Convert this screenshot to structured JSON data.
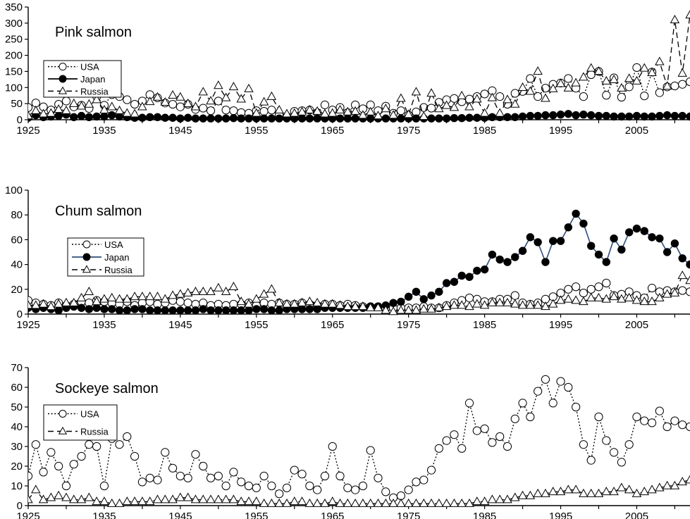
{
  "colors": {
    "japan_line_chum": "#2e4d7a",
    "marker_fill_japan": "#000000",
    "axis": "#000000",
    "background": "#ffffff"
  },
  "chart_data": [
    {
      "type": "line",
      "title": "Pink salmon",
      "xlim": [
        1925,
        2012
      ],
      "ylim": [
        0,
        350
      ],
      "yticks": [
        0,
        50,
        100,
        150,
        200,
        250,
        300,
        350
      ],
      "xticks": [
        1925,
        1935,
        1945,
        1955,
        1965,
        1975,
        1985,
        1995,
        2005
      ],
      "legend": {
        "entries": [
          "USA",
          "Japan",
          "Russia"
        ],
        "position": "upper-left"
      },
      "x": [
        1925,
        1926,
        1927,
        1928,
        1929,
        1930,
        1931,
        1932,
        1933,
        1934,
        1935,
        1936,
        1937,
        1938,
        1939,
        1940,
        1941,
        1942,
        1943,
        1944,
        1945,
        1946,
        1947,
        1948,
        1949,
        1950,
        1951,
        1952,
        1953,
        1954,
        1955,
        1956,
        1957,
        1958,
        1959,
        1960,
        1961,
        1962,
        1963,
        1964,
        1965,
        1966,
        1967,
        1968,
        1969,
        1970,
        1971,
        1972,
        1973,
        1974,
        1975,
        1976,
        1977,
        1978,
        1979,
        1980,
        1981,
        1982,
        1983,
        1984,
        1985,
        1986,
        1987,
        1988,
        1989,
        1990,
        1991,
        1992,
        1993,
        1994,
        1995,
        1996,
        1997,
        1998,
        1999,
        2000,
        2001,
        2002,
        2003,
        2004,
        2005,
        2006,
        2007,
        2008,
        2009,
        2010,
        2011,
        2012
      ],
      "series": [
        {
          "name": "USA",
          "style": "dotted-open-circle",
          "values": [
            38,
            52,
            40,
            30,
            48,
            58,
            40,
            45,
            35,
            72,
            45,
            78,
            72,
            62,
            48,
            58,
            78,
            68,
            52,
            48,
            40,
            48,
            32,
            36,
            28,
            58,
            30,
            28,
            22,
            20,
            28,
            26,
            30,
            14,
            10,
            26,
            28,
            30,
            22,
            46,
            30,
            38,
            22,
            46,
            34,
            46,
            28,
            42,
            20,
            28,
            14,
            24,
            38,
            36,
            54,
            62,
            66,
            56,
            64,
            72,
            80,
            90,
            72,
            48,
            82,
            88,
            128,
            72,
            98,
            110,
            114,
            128,
            98,
            72,
            140,
            150,
            76,
            130,
            70,
            102,
            162,
            74,
            148,
            84,
            102,
            105,
            110,
            118
          ]
        },
        {
          "name": "Japan",
          "style": "solid-filled-circle",
          "values": [
            6,
            14,
            8,
            10,
            12,
            16,
            8,
            12,
            8,
            10,
            10,
            14,
            10,
            8,
            6,
            6,
            8,
            8,
            6,
            6,
            4,
            6,
            4,
            4,
            4,
            4,
            4,
            5,
            4,
            4,
            4,
            4,
            4,
            4,
            4,
            4,
            4,
            4,
            4,
            4,
            4,
            4,
            4,
            4,
            4,
            4,
            4,
            4,
            4,
            4,
            4,
            4,
            4,
            4,
            4,
            4,
            5,
            5,
            6,
            6,
            6,
            8,
            8,
            8,
            8,
            10,
            12,
            12,
            14,
            14,
            16,
            18,
            14,
            16,
            14,
            12,
            12,
            10,
            10,
            10,
            12,
            10,
            10,
            12,
            14,
            12,
            12,
            10
          ]
        },
        {
          "name": "Russia",
          "style": "dashed-open-triangle",
          "values": [
            12,
            28,
            18,
            20,
            32,
            28,
            50,
            42,
            48,
            62,
            30,
            40,
            28,
            20,
            18,
            40,
            56,
            70,
            54,
            76,
            70,
            50,
            40,
            86,
            58,
            106,
            68,
            102,
            64,
            96,
            20,
            55,
            72,
            30,
            18,
            20,
            24,
            30,
            26,
            18,
            20,
            30,
            24,
            26,
            14,
            24,
            12,
            34,
            14,
            66,
            16,
            86,
            10,
            82,
            34,
            44,
            38,
            74,
            40,
            64,
            20,
            68,
            20,
            62,
            48,
            100,
            88,
            150,
            66,
            96,
            112,
            98,
            114,
            132,
            160,
            150,
            120,
            124,
            98,
            128,
            120,
            160,
            146,
            180,
            104,
            310,
            144,
            325
          ]
        }
      ]
    },
    {
      "type": "line",
      "title": "Chum salmon",
      "xlim": [
        1925,
        2012
      ],
      "ylim": [
        0,
        100
      ],
      "yticks": [
        0,
        20,
        40,
        60,
        80,
        100
      ],
      "xticks": [
        1925,
        1935,
        1945,
        1955,
        1965,
        1975,
        1985,
        1995,
        2005
      ],
      "legend": {
        "entries": [
          "USA",
          "Japan",
          "Russia"
        ],
        "position": "upper-left"
      },
      "x": [
        1925,
        1926,
        1927,
        1928,
        1929,
        1930,
        1931,
        1932,
        1933,
        1934,
        1935,
        1936,
        1937,
        1938,
        1939,
        1940,
        1941,
        1942,
        1943,
        1944,
        1945,
        1946,
        1947,
        1948,
        1949,
        1950,
        1951,
        1952,
        1953,
        1954,
        1955,
        1956,
        1957,
        1958,
        1959,
        1960,
        1961,
        1962,
        1963,
        1964,
        1965,
        1966,
        1967,
        1968,
        1969,
        1970,
        1971,
        1972,
        1973,
        1974,
        1975,
        1976,
        1977,
        1978,
        1979,
        1980,
        1981,
        1982,
        1983,
        1984,
        1985,
        1986,
        1987,
        1988,
        1989,
        1990,
        1991,
        1992,
        1993,
        1994,
        1995,
        1996,
        1997,
        1998,
        1999,
        2000,
        2001,
        2002,
        2003,
        2004,
        2005,
        2006,
        2007,
        2008,
        2009,
        2010,
        2011,
        2012
      ],
      "series": [
        {
          "name": "USA",
          "style": "dotted-open-circle",
          "values": [
            11,
            9,
            8,
            7,
            9,
            7,
            8,
            10,
            9,
            11,
            10,
            9,
            8,
            10,
            7,
            9,
            10,
            8,
            9,
            11,
            10,
            9,
            8,
            9,
            7,
            8,
            7,
            8,
            8,
            9,
            7,
            9,
            8,
            9,
            8,
            8,
            9,
            8,
            7,
            8,
            8,
            7,
            8,
            7,
            6,
            6,
            6,
            5,
            5,
            5,
            5,
            5,
            6,
            5,
            5,
            7,
            9,
            11,
            13,
            12,
            10,
            10,
            12,
            12,
            15,
            9,
            8,
            9,
            12,
            14,
            17,
            20,
            22,
            17,
            20,
            22,
            25,
            15,
            16,
            18,
            15,
            13,
            21,
            18,
            19,
            18,
            19,
            18
          ]
        },
        {
          "name": "Japan",
          "style": "solid-filled-circle",
          "values": [
            5,
            4,
            5,
            4,
            3,
            5,
            6,
            5,
            4,
            5,
            4,
            4,
            3,
            3,
            4,
            4,
            3,
            3,
            3,
            3,
            3,
            3,
            3,
            4,
            3,
            3,
            3,
            3,
            3,
            3,
            4,
            4,
            3,
            3,
            4,
            4,
            4,
            4,
            4,
            5,
            5,
            5,
            5,
            5,
            5,
            6,
            6,
            7,
            9,
            10,
            14,
            18,
            12,
            15,
            18,
            25,
            26,
            31,
            30,
            35,
            36,
            48,
            44,
            42,
            46,
            51,
            62,
            58,
            42,
            59,
            59,
            70,
            81,
            73,
            55,
            48,
            42,
            61,
            52,
            66,
            69,
            67,
            62,
            61,
            50,
            57,
            45,
            40
          ]
        },
        {
          "name": "Russia",
          "style": "dashed-open-triangle",
          "values": [
            7,
            7,
            8,
            6,
            8,
            9,
            9,
            13,
            18,
            10,
            12,
            13,
            12,
            12,
            14,
            14,
            14,
            14,
            12,
            15,
            16,
            17,
            18,
            18,
            18,
            21,
            18,
            22,
            10,
            8,
            12,
            16,
            20,
            9,
            8,
            8,
            9,
            10,
            9,
            8,
            8,
            7,
            6,
            6,
            6,
            5,
            5,
            3,
            2,
            3,
            3,
            3,
            4,
            4,
            5,
            6,
            7,
            7,
            6,
            8,
            7,
            9,
            9,
            9,
            8,
            7,
            7,
            7,
            6,
            8,
            11,
            12,
            11,
            10,
            13,
            13,
            12,
            14,
            12,
            13,
            11,
            10,
            10,
            13,
            16,
            17,
            31,
            27
          ]
        }
      ]
    },
    {
      "type": "line",
      "title": "Sockeye salmon",
      "xlim": [
        1925,
        2012
      ],
      "ylim": [
        0,
        70
      ],
      "yticks": [
        0,
        10,
        20,
        30,
        40,
        50,
        60,
        70
      ],
      "xticks": [
        1925,
        1935,
        1945,
        1955,
        1965,
        1975,
        1985,
        1995,
        2005
      ],
      "legend": {
        "entries": [
          "USA",
          "Russia"
        ],
        "position": "upper-left"
      },
      "x": [
        1925,
        1926,
        1927,
        1928,
        1929,
        1930,
        1931,
        1932,
        1933,
        1934,
        1935,
        1936,
        1937,
        1938,
        1939,
        1940,
        1941,
        1942,
        1943,
        1944,
        1945,
        1946,
        1947,
        1948,
        1949,
        1950,
        1951,
        1952,
        1953,
        1954,
        1955,
        1956,
        1957,
        1958,
        1959,
        1960,
        1961,
        1962,
        1963,
        1964,
        1965,
        1966,
        1967,
        1968,
        1969,
        1970,
        1971,
        1972,
        1973,
        1974,
        1975,
        1976,
        1977,
        1978,
        1979,
        1980,
        1981,
        1982,
        1983,
        1984,
        1985,
        1986,
        1987,
        1988,
        1989,
        1990,
        1991,
        1992,
        1993,
        1994,
        1995,
        1996,
        1997,
        1998,
        1999,
        2000,
        2001,
        2002,
        2003,
        2004,
        2005,
        2006,
        2007,
        2008,
        2009,
        2010,
        2011,
        2012
      ],
      "series": [
        {
          "name": "USA",
          "style": "dotted-open-circle",
          "values": [
            15,
            31,
            17,
            27,
            20,
            10,
            21,
            25,
            31,
            30,
            10,
            34,
            31,
            35,
            25,
            12,
            14,
            13,
            27,
            19,
            15,
            14,
            26,
            20,
            14,
            15,
            10,
            17,
            12,
            10,
            9,
            15,
            10,
            6,
            9,
            18,
            16,
            10,
            8,
            15,
            30,
            15,
            9,
            8,
            10,
            28,
            14,
            7,
            4,
            5,
            8,
            12,
            13,
            18,
            29,
            33,
            36,
            29,
            52,
            38,
            39,
            32,
            35,
            30,
            44,
            52,
            45,
            58,
            64,
            52,
            63,
            60,
            50,
            31,
            23,
            45,
            33,
            27,
            22,
            31,
            45,
            43,
            42,
            48,
            40,
            43,
            41,
            40
          ]
        },
        {
          "name": "Russia",
          "style": "dashed-open-triangle",
          "values": [
            3,
            8,
            3,
            4,
            5,
            4,
            3,
            3,
            4,
            2,
            2,
            1,
            1,
            2,
            2,
            2,
            2,
            3,
            3,
            3,
            4,
            4,
            3,
            3,
            3,
            3,
            3,
            3,
            2,
            2,
            2,
            1,
            1,
            1,
            1,
            2,
            2,
            1,
            1,
            1,
            2,
            1,
            1,
            1,
            1,
            1,
            1,
            1,
            1,
            1,
            1,
            1,
            1,
            1,
            1,
            1,
            1,
            1,
            1,
            2,
            2,
            3,
            3,
            3,
            4,
            5,
            5,
            6,
            6,
            7,
            7,
            8,
            8,
            6,
            6,
            6,
            7,
            7,
            9,
            8,
            6,
            7,
            8,
            9,
            10,
            10,
            12,
            13
          ]
        }
      ]
    }
  ]
}
